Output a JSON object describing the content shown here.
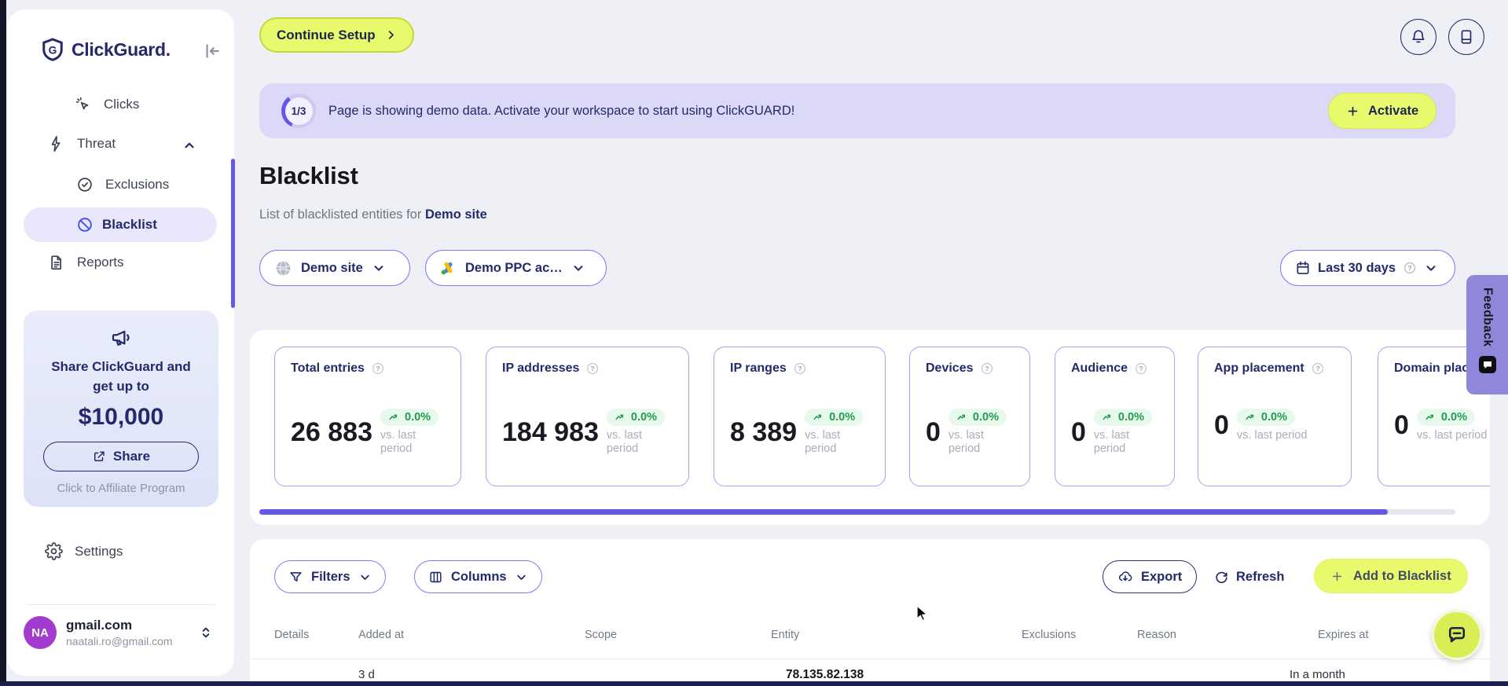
{
  "brand": {
    "name": "ClickGuard."
  },
  "sidebar": {
    "nav": [
      {
        "label": "Clicks"
      },
      {
        "label": "Threat"
      },
      {
        "label": "Exclusions"
      },
      {
        "label": "Blacklist"
      },
      {
        "label": "Reports"
      }
    ],
    "promo": {
      "heading": "Share ClickGuard and get up to",
      "amount": "$10,000",
      "share": "Share",
      "caption": "Click to Affiliate Program"
    },
    "settings": "Settings",
    "account": {
      "initials": "NA",
      "name": "gmail.com",
      "email": "naatali.ro@gmail.com"
    }
  },
  "topbar": {
    "continue_setup": "Continue Setup"
  },
  "banner": {
    "progress": "1/3",
    "message": "Page is showing demo data. Activate your workspace to start using ClickGUARD!",
    "activate": "Activate"
  },
  "page": {
    "title": "Blacklist",
    "subtitle": "List of blacklisted entities for",
    "subtitle_target": "Demo site"
  },
  "selectors": {
    "site": "Demo site",
    "ppc_account": "Demo PPC ac…",
    "date_range": "Last 30 days"
  },
  "stats": {
    "cards": [
      {
        "label": "Total entries",
        "value": "26 883",
        "delta": "0.0%",
        "caption": "vs. last period"
      },
      {
        "label": "IP addresses",
        "value": "184 983",
        "delta": "0.0%",
        "caption": "vs. last period"
      },
      {
        "label": "IP ranges",
        "value": "8 389",
        "delta": "0.0%",
        "caption": "vs. last period"
      },
      {
        "label": "Devices",
        "value": "0",
        "delta": "0.0%",
        "caption": "vs. last period"
      },
      {
        "label": "Audience",
        "value": "0",
        "delta": "0.0%",
        "caption": "vs. last period"
      },
      {
        "label": "App placement",
        "value": "0",
        "delta": "0.0%",
        "caption": "vs. last period"
      },
      {
        "label": "Domain placement",
        "value": "0",
        "delta": "0.0%",
        "caption": "vs. last period"
      }
    ]
  },
  "toolbar": {
    "filters": "Filters",
    "columns": "Columns",
    "export": "Export",
    "refresh": "Refresh",
    "add_to_blacklist": "Add to Blacklist"
  },
  "table": {
    "headers": [
      "Details",
      "Added at",
      "Scope",
      "Entity",
      "Exclusions",
      "Reason",
      "Expires at"
    ],
    "partial_row": {
      "added_at": "3 d",
      "entity": "78.135.82.138",
      "expires_at": "In a month"
    }
  },
  "feedback": {
    "label": "Feedback"
  },
  "colors": {
    "accent": "#6557e8",
    "lime": "#e9f96e",
    "navy": "#232a6c",
    "green": "#1f9d4e"
  }
}
